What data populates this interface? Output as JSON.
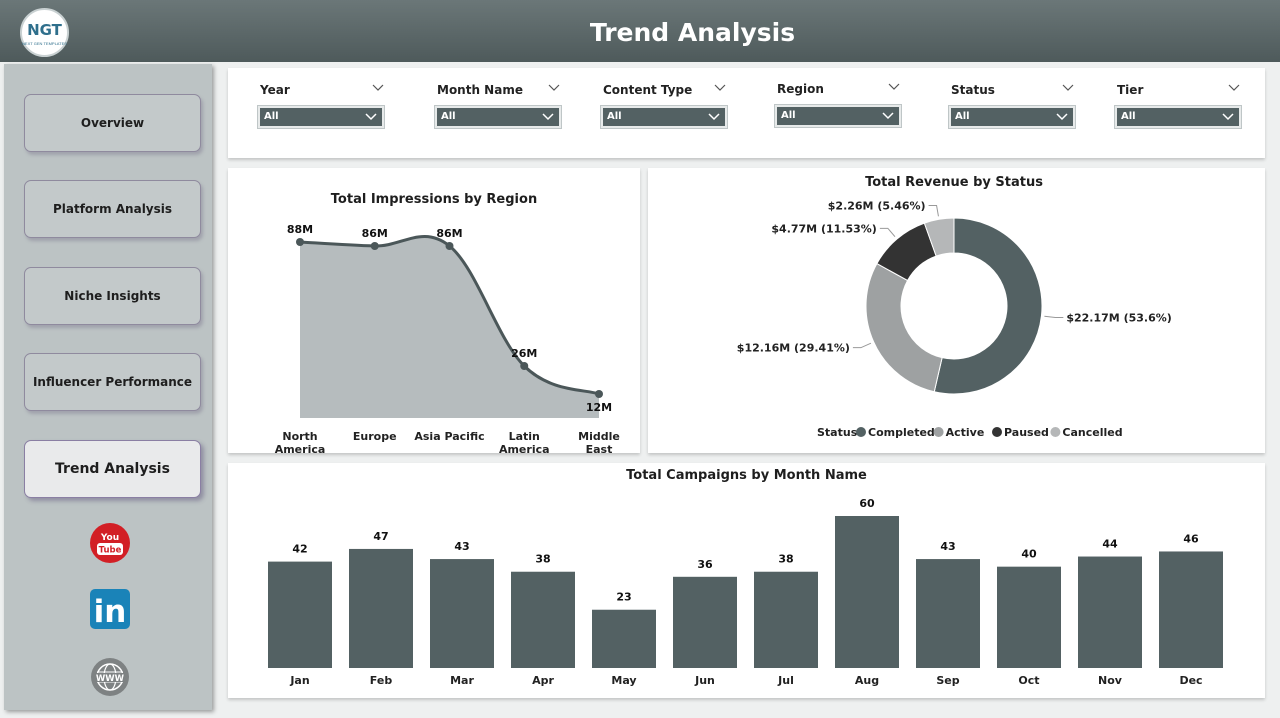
{
  "app": {
    "title": "Trend Analysis",
    "logo_text": "NGT",
    "logo_subtext": "NEXT GEN TEMPLATES"
  },
  "nav": {
    "items": [
      {
        "label": "Overview"
      },
      {
        "label": "Platform Analysis"
      },
      {
        "label": "Niche Insights"
      },
      {
        "label": "Influencer Performance"
      },
      {
        "label": "Trend Analysis"
      }
    ],
    "active_index": 4,
    "social_icons": [
      "youtube-icon",
      "linkedin-icon",
      "website-globe-icon"
    ],
    "youtube_text": {
      "top": "You",
      "bottom": "Tube"
    },
    "linkedin_text": "in",
    "www_text": "WWW"
  },
  "filters": [
    {
      "label": "Year",
      "value": "All"
    },
    {
      "label": "Month Name",
      "value": "All"
    },
    {
      "label": "Content Type",
      "value": "All"
    },
    {
      "label": "Region",
      "value": "All"
    },
    {
      "label": "Status",
      "value": "All"
    },
    {
      "label": "Tier",
      "value": "All"
    }
  ],
  "colors": {
    "header": "#56625f",
    "bar": "#536163",
    "area_fill": "#b6bcbe",
    "line": "#4b5759",
    "completed": "#536163",
    "active": "#9ea1a2",
    "paused": "#333333",
    "cancelled": "#b5b7b8"
  },
  "chart_data": [
    {
      "type": "area",
      "title": "Total Impressions by Region",
      "categories": [
        [
          "North",
          "America"
        ],
        [
          "Europe"
        ],
        [
          "Asia Pacific"
        ],
        [
          "Latin",
          "America"
        ],
        [
          "Middle",
          "East"
        ]
      ],
      "values": [
        88,
        86,
        86,
        26,
        12
      ],
      "data_labels": [
        "88M",
        "86M",
        "86M",
        "26M",
        "12M"
      ],
      "unit": "M",
      "ylim": [
        0,
        100
      ]
    },
    {
      "type": "pie",
      "title": "Total Revenue by Status",
      "legend_title": "Status",
      "legend_position": "bottom",
      "slices": [
        {
          "name": "Completed",
          "value": 22.17,
          "label": "$22.17M (53.6%)"
        },
        {
          "name": "Active",
          "value": 12.16,
          "label": "$12.16M (29.41%)"
        },
        {
          "name": "Paused",
          "value": 4.77,
          "label": "$4.77M (11.53%)"
        },
        {
          "name": "Cancelled",
          "value": 2.26,
          "label": "$2.26M (5.46%)"
        }
      ]
    },
    {
      "type": "bar",
      "title": "Total Campaigns by Month Name",
      "categories": [
        "Jan",
        "Feb",
        "Mar",
        "Apr",
        "May",
        "Jun",
        "Jul",
        "Aug",
        "Sep",
        "Oct",
        "Nov",
        "Dec"
      ],
      "values": [
        42,
        47,
        43,
        38,
        23,
        36,
        38,
        60,
        43,
        40,
        44,
        46
      ],
      "ylim": [
        0,
        60
      ]
    }
  ]
}
